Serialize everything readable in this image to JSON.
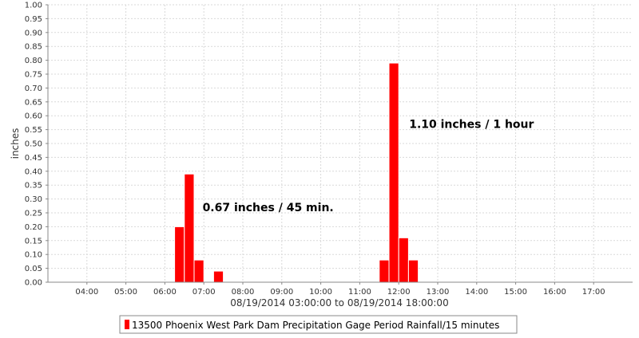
{
  "colors": {
    "bar": "#ff0000",
    "bar_stroke": "#ffffff",
    "grid": "#d9d9d9",
    "axis": "#888888",
    "background": "#ffffff"
  },
  "chart_data": {
    "type": "bar",
    "title": "",
    "xlabel": "08/19/2014 03:00:00 to 08/19/2014 18:00:00",
    "ylabel": "inches",
    "xlim": [
      "03:00",
      "18:00"
    ],
    "ylim": [
      0,
      1.0
    ],
    "grid": true,
    "x_ticks": [
      "04:00",
      "05:00",
      "06:00",
      "07:00",
      "08:00",
      "09:00",
      "10:00",
      "11:00",
      "12:00",
      "13:00",
      "14:00",
      "15:00",
      "16:00",
      "17:00"
    ],
    "y_ticks": [
      "0.00",
      "0.05",
      "0.10",
      "0.15",
      "0.20",
      "0.25",
      "0.30",
      "0.35",
      "0.40",
      "0.45",
      "0.50",
      "0.55",
      "0.60",
      "0.65",
      "0.70",
      "0.75",
      "0.80",
      "0.85",
      "0.90",
      "0.95",
      "1.00"
    ],
    "series": [
      {
        "name": "13500 Phoenix West Park Dam Precipitation Gage Period Rainfall/15 minutes",
        "points": [
          {
            "x": "06:15",
            "y": 0.2
          },
          {
            "x": "06:30",
            "y": 0.39
          },
          {
            "x": "06:45",
            "y": 0.08
          },
          {
            "x": "07:15",
            "y": 0.04
          },
          {
            "x": "11:30",
            "y": 0.08
          },
          {
            "x": "11:45",
            "y": 0.79
          },
          {
            "x": "12:00",
            "y": 0.16
          },
          {
            "x": "12:15",
            "y": 0.08
          }
        ]
      }
    ],
    "annotations": [
      {
        "text": "0.67 inches / 45 min.",
        "x": "06:58",
        "y": 0.27
      },
      {
        "text": "1.10 inches / 1 hour",
        "x": "12:16",
        "y": 0.57
      }
    ],
    "legend": {
      "position": "bottom"
    }
  }
}
